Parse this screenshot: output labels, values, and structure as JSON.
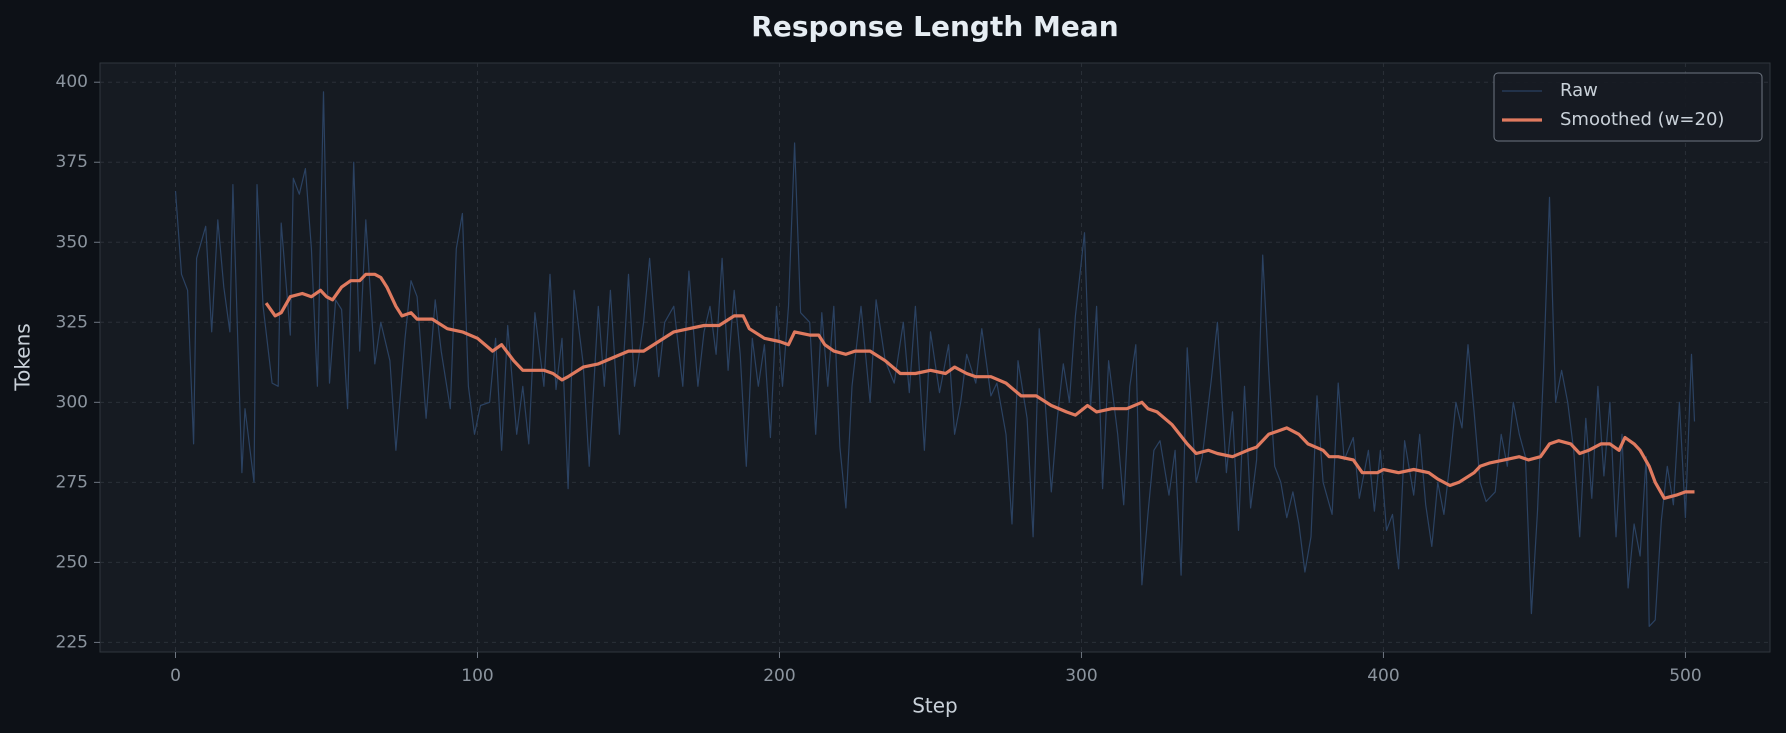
{
  "chart_data": {
    "type": "line",
    "title": "Response Length Mean",
    "x_label": "Step",
    "y_label": "Tokens",
    "xlim": [
      -25,
      528
    ],
    "xticks": [
      0,
      100,
      200,
      300,
      400,
      500
    ],
    "ylim": [
      222,
      406
    ],
    "yticks": [
      225,
      250,
      275,
      300,
      325,
      350,
      375,
      400
    ],
    "grid": true,
    "legend": "upper right",
    "series": [
      {
        "name": "Raw",
        "color": "#2b4262",
        "x": [
          0,
          2,
          4,
          6,
          7,
          10,
          12,
          14,
          16,
          18,
          19,
          22,
          23,
          26,
          27,
          29,
          32,
          34,
          35,
          38,
          39,
          41,
          43,
          45,
          47,
          49,
          51,
          53,
          55,
          57,
          59,
          61,
          63,
          66,
          68,
          71,
          73,
          76,
          78,
          80,
          83,
          86,
          88,
          91,
          93,
          95,
          97,
          99,
          101,
          104,
          106,
          108,
          110,
          113,
          115,
          117,
          119,
          122,
          124,
          126,
          128,
          130,
          132,
          135,
          137,
          140,
          142,
          144,
          147,
          150,
          152,
          155,
          157,
          160,
          162,
          165,
          168,
          170,
          173,
          175,
          177,
          179,
          181,
          183,
          185,
          187,
          189,
          191,
          193,
          195,
          197,
          199,
          201,
          203,
          205,
          207,
          210,
          212,
          214,
          216,
          218,
          220,
          222,
          224,
          227,
          230,
          232,
          235,
          238,
          241,
          243,
          245,
          248,
          250,
          253,
          256,
          258,
          260,
          262,
          265,
          267,
          270,
          272,
          275,
          277,
          279,
          282,
          284,
          286,
          288,
          290,
          292,
          294,
          296,
          298,
          301,
          303,
          305,
          307,
          309,
          312,
          314,
          316,
          318,
          320,
          322,
          324,
          326,
          329,
          331,
          333,
          335,
          338,
          340,
          343,
          345,
          348,
          350,
          352,
          354,
          356,
          358,
          360,
          362,
          364,
          366,
          368,
          370,
          372,
          374,
          376,
          378,
          380,
          383,
          385,
          387,
          390,
          392,
          395,
          397,
          399,
          401,
          403,
          405,
          407,
          410,
          412,
          414,
          416,
          418,
          420,
          422,
          424,
          426,
          428,
          430,
          432,
          434,
          437,
          439,
          441,
          443,
          445,
          447,
          449,
          451,
          453,
          455,
          457,
          459,
          461,
          463,
          465,
          467,
          469,
          471,
          473,
          475,
          477,
          479,
          481,
          483,
          485,
          487,
          488,
          490,
          492,
          494,
          496,
          498,
          500,
          502,
          503
        ],
        "values": [
          366,
          340,
          335,
          287,
          345,
          355,
          322,
          357,
          336,
          322,
          368,
          278,
          298,
          275,
          368,
          330,
          306,
          305,
          356,
          321,
          370,
          365,
          373,
          348,
          305,
          397,
          306,
          332,
          329,
          298,
          375,
          316,
          357,
          312,
          325,
          313,
          285,
          320,
          338,
          333,
          295,
          332,
          316,
          298,
          348,
          359,
          305,
          290,
          299,
          300,
          320,
          285,
          324,
          290,
          305,
          287,
          328,
          305,
          340,
          304,
          320,
          273,
          335,
          312,
          280,
          330,
          305,
          335,
          290,
          340,
          305,
          325,
          345,
          308,
          325,
          330,
          305,
          341,
          305,
          322,
          330,
          315,
          345,
          310,
          335,
          315,
          280,
          320,
          305,
          318,
          289,
          330,
          305,
          330,
          381,
          328,
          325,
          290,
          328,
          305,
          330,
          286,
          267,
          305,
          330,
          300,
          332,
          313,
          306,
          325,
          303,
          330,
          285,
          322,
          303,
          318,
          290,
          300,
          315,
          306,
          323,
          302,
          306,
          290,
          262,
          313,
          295,
          258,
          323,
          300,
          272,
          295,
          312,
          300,
          327,
          353,
          298,
          330,
          273,
          313,
          290,
          268,
          305,
          318,
          243,
          265,
          285,
          288,
          271,
          285,
          246,
          317,
          275,
          283,
          307,
          325,
          278,
          297,
          260,
          305,
          267,
          282,
          346,
          310,
          280,
          275,
          264,
          272,
          262,
          247,
          258,
          302,
          275,
          265,
          306,
          282,
          289,
          270,
          285,
          266,
          285,
          260,
          265,
          248,
          288,
          271,
          290,
          268,
          255,
          275,
          265,
          281,
          300,
          292,
          318,
          297,
          275,
          269,
          272,
          290,
          280,
          300,
          290,
          283,
          234,
          266,
          310,
          364,
          300,
          310,
          300,
          285,
          258,
          295,
          270,
          305,
          277,
          300,
          258,
          290,
          242,
          262,
          252,
          283,
          230,
          232,
          263,
          280,
          268,
          300,
          264,
          315,
          294
        ]
      },
      {
        "name": "Smoothed (w=20)",
        "color": "#e07a5f",
        "x": [
          30,
          33,
          35,
          38,
          42,
          45,
          48,
          50,
          52,
          55,
          58,
          61,
          63,
          66,
          68,
          70,
          73,
          75,
          78,
          80,
          85,
          90,
          95,
          100,
          105,
          108,
          112,
          115,
          118,
          122,
          125,
          128,
          130,
          135,
          140,
          145,
          150,
          155,
          160,
          165,
          170,
          175,
          180,
          185,
          188,
          190,
          195,
          200,
          203,
          205,
          210,
          213,
          215,
          218,
          222,
          225,
          230,
          235,
          240,
          245,
          250,
          255,
          258,
          262,
          265,
          270,
          275,
          280,
          285,
          290,
          295,
          298,
          302,
          305,
          310,
          315,
          320,
          322,
          325,
          330,
          335,
          338,
          342,
          345,
          350,
          355,
          358,
          362,
          365,
          368,
          372,
          375,
          380,
          382,
          385,
          390,
          393,
          398,
          400,
          405,
          410,
          415,
          418,
          422,
          425,
          430,
          432,
          435,
          440,
          445,
          448,
          452,
          455,
          458,
          462,
          465,
          468,
          472,
          475,
          478,
          480,
          483,
          485,
          488,
          490,
          493,
          497,
          500,
          502,
          503
        ],
        "values": [
          331,
          327,
          328,
          333,
          334,
          333,
          335,
          333,
          332,
          336,
          338,
          338,
          340,
          340,
          339,
          336,
          330,
          327,
          328,
          326,
          326,
          323,
          322,
          320,
          316,
          318,
          313,
          310,
          310,
          310,
          309,
          307,
          308,
          311,
          312,
          314,
          316,
          316,
          319,
          322,
          323,
          324,
          324,
          327,
          327,
          323,
          320,
          319,
          318,
          322,
          321,
          321,
          318,
          316,
          315,
          316,
          316,
          313,
          309,
          309,
          310,
          309,
          311,
          309,
          308,
          308,
          306,
          302,
          302,
          299,
          297,
          296,
          299,
          297,
          298,
          298,
          300,
          298,
          297,
          293,
          287,
          284,
          285,
          284,
          283,
          285,
          286,
          290,
          291,
          292,
          290,
          287,
          285,
          283,
          283,
          282,
          278,
          278,
          279,
          278,
          279,
          278,
          276,
          274,
          275,
          278,
          280,
          281,
          282,
          283,
          282,
          283,
          287,
          288,
          287,
          284,
          285,
          287,
          287,
          285,
          289,
          287,
          285,
          280,
          275,
          270,
          271,
          272,
          272,
          272
        ]
      }
    ]
  }
}
